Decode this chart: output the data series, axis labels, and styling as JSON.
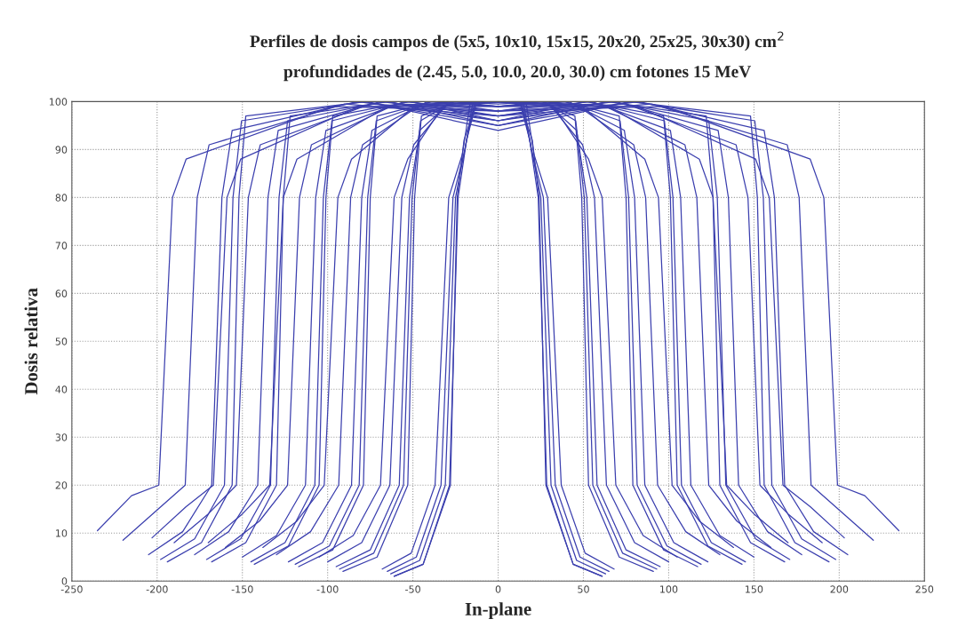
{
  "chart_data": {
    "type": "line",
    "title": "Perfiles de dosis campos de (5x5, 10x10, 15x15, 20x20, 25x25, 30x30) cm$^{2}$",
    "subtitle": "profundidades de (2.45, 5.0, 10.0, 20.0, 30.0) cm fotones 15 MeV",
    "xlabel": "In-plane",
    "ylabel": "Dosis relativa",
    "xlim": [
      -250,
      250
    ],
    "xticks": [
      -250,
      -200,
      -150,
      -100,
      -50,
      0,
      50,
      100,
      150,
      200,
      250
    ],
    "ylim": [
      0,
      100
    ],
    "yticks": [
      0,
      10,
      20,
      30,
      40,
      50,
      60,
      70,
      80,
      90,
      100
    ],
    "grid": true,
    "line_style": "solid",
    "marker": "none",
    "series": [
      {
        "color": "#3b3fae",
        "x": [
          -61,
          -44,
          -28,
          -26,
          -24,
          -20,
          -13,
          0,
          13,
          20,
          24,
          26,
          28,
          44,
          61
        ],
        "values": [
          1,
          3.5,
          20,
          50,
          80,
          92,
          99.5,
          100,
          99.5,
          92,
          80,
          50,
          20,
          3.5,
          1
        ]
      },
      {
        "color": "#3b3fae",
        "x": [
          -61,
          -44,
          -28.5,
          -26,
          -23.5,
          -18.5,
          -13,
          0,
          13,
          18.5,
          23.5,
          26,
          28.5,
          44,
          61
        ],
        "values": [
          1,
          3.5,
          20,
          50,
          80,
          92,
          99.5,
          100,
          99.5,
          92,
          80,
          50,
          20,
          3.5,
          1
        ]
      },
      {
        "color": "#3b3fae",
        "x": [
          -63,
          -46,
          -31,
          -28,
          -25,
          -19,
          -14,
          0,
          14,
          19,
          25,
          28,
          31,
          46,
          63
        ],
        "values": [
          1.5,
          4.3,
          20,
          50,
          80,
          91,
          99.5,
          100,
          99.5,
          91,
          80,
          50,
          20,
          4.3,
          1.5
        ]
      },
      {
        "color": "#3b3fae",
        "x": [
          -65,
          -48,
          -33.5,
          -30,
          -26.5,
          -19.5,
          -15,
          0,
          15,
          19.5,
          26.5,
          30,
          33.5,
          48,
          65
        ],
        "values": [
          2,
          5,
          20,
          50,
          80,
          90,
          99.5,
          100,
          99.5,
          90,
          80,
          50,
          20,
          5,
          2
        ]
      },
      {
        "color": "#3b3fae",
        "x": [
          -68,
          -51,
          -37,
          -33,
          -29,
          -21,
          -16.5,
          0,
          16.5,
          21,
          29,
          33,
          37,
          51,
          68
        ],
        "values": [
          2.5,
          5.8,
          20,
          50,
          80,
          89,
          99.5,
          100,
          99.5,
          89,
          80,
          50,
          20,
          5.8,
          2.5
        ]
      },
      {
        "color": "#3b3fae",
        "x": [
          -91,
          -71,
          -53,
          -51,
          -49,
          -45,
          -25.5,
          0,
          25.5,
          45,
          49,
          51,
          53,
          71,
          91
        ],
        "values": [
          2,
          5,
          20,
          50,
          80,
          97,
          100,
          99,
          100,
          97,
          80,
          50,
          20,
          5,
          2
        ]
      },
      {
        "color": "#3b3fae",
        "x": [
          -93,
          -73,
          -55.5,
          -53,
          -50.5,
          -45.5,
          -26.5,
          0,
          26.5,
          45.5,
          50.5,
          53,
          55.5,
          73,
          93
        ],
        "values": [
          2.5,
          5.8,
          20,
          50,
          80,
          96,
          100,
          99.5,
          100,
          96,
          80,
          50,
          20,
          5.8,
          2.5
        ]
      },
      {
        "color": "#3b3fae",
        "x": [
          -95,
          -75,
          -58,
          -55,
          -52,
          -46,
          -27.5,
          0,
          27.5,
          46,
          52,
          55,
          58,
          75,
          95
        ],
        "values": [
          3,
          6.5,
          20,
          50,
          80,
          94,
          100,
          100,
          100,
          94,
          80,
          50,
          20,
          6.5,
          3
        ]
      },
      {
        "color": "#3b3fae",
        "x": [
          -100,
          -80,
          -63.5,
          -60,
          -56.5,
          -49.5,
          -30,
          0,
          30,
          49.5,
          56.5,
          60,
          63.5,
          80,
          100
        ],
        "values": [
          4,
          8,
          20,
          50,
          80,
          91,
          99.5,
          100,
          99.5,
          91,
          80,
          50,
          20,
          8,
          4
        ]
      },
      {
        "color": "#3b3fae",
        "x": [
          -105,
          -85,
          -69,
          -65,
          -61,
          -53,
          -32.5,
          0,
          32.5,
          53,
          61,
          65,
          69,
          85,
          105
        ],
        "values": [
          5,
          9.5,
          20,
          50,
          80,
          88,
          99,
          100,
          99,
          88,
          80,
          50,
          20,
          9.5,
          5
        ]
      },
      {
        "color": "#3b3fae",
        "x": [
          -117,
          -97,
          -79,
          -77,
          -75,
          -71,
          -38.5,
          0,
          38.5,
          71,
          75,
          77,
          79,
          97,
          117
        ],
        "values": [
          3,
          6.5,
          20,
          50,
          80,
          97,
          100,
          98,
          100,
          97,
          80,
          50,
          20,
          6.5,
          3
        ]
      },
      {
        "color": "#3b3fae",
        "x": [
          -119,
          -99,
          -81.5,
          -79,
          -76.5,
          -71.5,
          -39.5,
          0,
          39.5,
          71.5,
          76.5,
          79,
          81.5,
          99,
          119
        ],
        "values": [
          3.5,
          7.3,
          20,
          50,
          80,
          96,
          100,
          99,
          100,
          96,
          80,
          50,
          20,
          7.3,
          3.5
        ]
      },
      {
        "color": "#3b3fae",
        "x": [
          -123,
          -103,
          -86,
          -83,
          -80,
          -74,
          -41.5,
          0,
          41.5,
          74,
          80,
          83,
          86,
          103,
          123
        ],
        "values": [
          4,
          8,
          20,
          50,
          80,
          94,
          100,
          99,
          100,
          94,
          80,
          50,
          20,
          8,
          4
        ]
      },
      {
        "color": "#3b3fae",
        "x": [
          -130,
          -110,
          -93.5,
          -90,
          -86.5,
          -79.5,
          -45,
          0,
          45,
          79.5,
          86.5,
          90,
          93.5,
          110,
          130
        ],
        "values": [
          5.5,
          10.3,
          20,
          50,
          80,
          91,
          99.5,
          100,
          99.5,
          91,
          80,
          50,
          20,
          10.3,
          5.5
        ]
      },
      {
        "color": "#3b3fae",
        "x": [
          -138,
          -118,
          -102,
          -98,
          -94,
          -86,
          -49,
          0,
          49,
          86,
          94,
          98,
          102,
          118,
          138
        ],
        "values": [
          7,
          12.5,
          20,
          50,
          80,
          88,
          99,
          100,
          99,
          88,
          80,
          50,
          20,
          12.5,
          7
        ]
      },
      {
        "color": "#3b3fae",
        "x": [
          -143,
          -123,
          -105,
          -103,
          -101,
          -97,
          -51.5,
          0,
          51.5,
          97,
          101,
          103,
          105,
          123,
          143
        ],
        "values": [
          3.5,
          7.3,
          20,
          50,
          80,
          97,
          100,
          96,
          100,
          97,
          80,
          50,
          20,
          7.3,
          3.5
        ]
      },
      {
        "color": "#3b3fae",
        "x": [
          -145,
          -125,
          -107.5,
          -105,
          -102.5,
          -97.5,
          -52.5,
          0,
          52.5,
          97.5,
          102.5,
          105,
          107.5,
          125,
          145
        ],
        "values": [
          4,
          8,
          20,
          50,
          80,
          96,
          100,
          97,
          100,
          96,
          80,
          50,
          20,
          8,
          4
        ]
      },
      {
        "color": "#3b3fae",
        "x": [
          -150,
          -130,
          -113,
          -110,
          -107,
          -101,
          -55,
          0,
          55,
          101,
          107,
          110,
          113,
          130,
          150
        ],
        "values": [
          5,
          9.5,
          20,
          50,
          80,
          94,
          100,
          98,
          100,
          94,
          80,
          50,
          20,
          9.5,
          5
        ]
      },
      {
        "color": "#3b3fae",
        "x": [
          -160,
          -140,
          -123.5,
          -120,
          -116.5,
          -109.5,
          -60,
          0,
          60,
          109.5,
          116.5,
          120,
          123.5,
          140,
          160
        ],
        "values": [
          7,
          12.5,
          20,
          50,
          80,
          91,
          99.5,
          99,
          99.5,
          91,
          80,
          50,
          20,
          12.5,
          7
        ]
      },
      {
        "color": "#3b3fae",
        "x": [
          -170,
          -150,
          -134,
          -130,
          -126,
          -118,
          -65,
          0,
          65,
          118,
          126,
          130,
          134,
          150,
          170
        ],
        "values": [
          8,
          14,
          20,
          50,
          80,
          88,
          99,
          100,
          99,
          88,
          80,
          50,
          20,
          14,
          8
        ]
      },
      {
        "color": "#3b3fae",
        "x": [
          -168,
          -148,
          -130,
          -128,
          -126,
          -122,
          -64,
          0,
          64,
          122,
          126,
          128,
          130,
          148,
          168
        ],
        "values": [
          4,
          8,
          20,
          50,
          80,
          97,
          100,
          95,
          100,
          97,
          80,
          50,
          20,
          8,
          4
        ]
      },
      {
        "color": "#3b3fae",
        "x": [
          -171,
          -151,
          -133.5,
          -131,
          -128.5,
          -123.5,
          -65.5,
          0,
          65.5,
          123.5,
          128.5,
          131,
          133.5,
          151,
          171
        ],
        "values": [
          4.5,
          8.8,
          20,
          50,
          80,
          96,
          100,
          96,
          100,
          96,
          80,
          50,
          20,
          8.8,
          4.5
        ]
      },
      {
        "color": "#3b3fae",
        "x": [
          -178,
          -158,
          -141,
          -138,
          -135,
          -129,
          -69,
          0,
          69,
          129,
          135,
          138,
          141,
          158,
          178
        ],
        "values": [
          5.5,
          10.3,
          20,
          50,
          80,
          94,
          100,
          97,
          100,
          94,
          80,
          50,
          20,
          10.3,
          5.5
        ]
      },
      {
        "color": "#3b3fae",
        "x": [
          -190,
          -170,
          -153.5,
          -150,
          -146.5,
          -139.5,
          -75,
          0,
          75,
          139.5,
          146.5,
          150,
          153.5,
          170,
          190
        ],
        "values": [
          8,
          14,
          20,
          50,
          80,
          91,
          99.5,
          98,
          99.5,
          91,
          80,
          50,
          20,
          14,
          8
        ]
      },
      {
        "color": "#3b3fae",
        "x": [
          -203,
          -183,
          -167,
          -163,
          -159,
          -151,
          -81.5,
          0,
          81.5,
          151,
          159,
          163,
          167,
          183,
          203
        ],
        "values": [
          9,
          15.5,
          20,
          50,
          80,
          88,
          99,
          99,
          99,
          88,
          80,
          50,
          20,
          15.5,
          9
        ]
      },
      {
        "color": "#3b3fae",
        "x": [
          -194,
          -174,
          -156,
          -154,
          -152,
          -148,
          -77,
          0,
          77,
          148,
          152,
          154,
          156,
          174,
          194
        ],
        "values": [
          4,
          8,
          20,
          50,
          80,
          97,
          100,
          94,
          100,
          97,
          80,
          50,
          20,
          8,
          4
        ]
      },
      {
        "color": "#3b3fae",
        "x": [
          -198,
          -178,
          -160.5,
          -158,
          -155.5,
          -150.5,
          -79,
          0,
          79,
          150.5,
          155.5,
          158,
          160.5,
          178,
          198
        ],
        "values": [
          4.5,
          8.8,
          20,
          50,
          80,
          96,
          100,
          95,
          100,
          96,
          80,
          50,
          20,
          8.8,
          4.5
        ]
      },
      {
        "color": "#3b3fae",
        "x": [
          -205,
          -185,
          -168,
          -165,
          -162,
          -156,
          -82.5,
          0,
          82.5,
          156,
          162,
          165,
          168,
          185,
          205
        ],
        "values": [
          5.5,
          10.3,
          20,
          50,
          80,
          94,
          100,
          96,
          100,
          94,
          80,
          50,
          20,
          10.3,
          5.5
        ]
      },
      {
        "color": "#3b3fae",
        "x": [
          -220,
          -200,
          -183.5,
          -180,
          -176.5,
          -169.5,
          -90,
          0,
          90,
          169.5,
          176.5,
          180,
          183.5,
          200,
          220
        ],
        "values": [
          8.5,
          14.8,
          20,
          50,
          80,
          91,
          99.5,
          97,
          99.5,
          91,
          80,
          50,
          20,
          14.8,
          8.5
        ]
      },
      {
        "color": "#3b3fae",
        "x": [
          -235,
          -215,
          -199,
          -195,
          -191,
          -183,
          -97.5,
          0,
          97.5,
          183,
          191,
          195,
          199,
          215,
          235
        ],
        "values": [
          10.5,
          17.8,
          20,
          50,
          80,
          88,
          99,
          98,
          99,
          88,
          80,
          50,
          20,
          17.8,
          10.5
        ]
      }
    ]
  }
}
